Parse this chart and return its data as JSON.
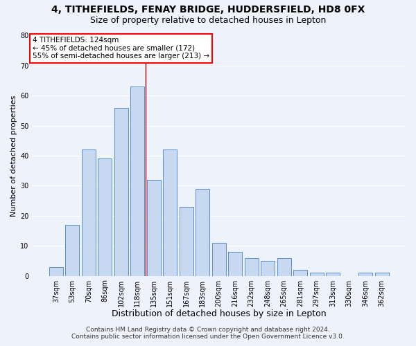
{
  "title1": "4, TITHEFIELDS, FENAY BRIDGE, HUDDERSFIELD, HD8 0FX",
  "title2": "Size of property relative to detached houses in Lepton",
  "xlabel": "Distribution of detached houses by size in Lepton",
  "ylabel": "Number of detached properties",
  "categories": [
    "37sqm",
    "53sqm",
    "70sqm",
    "86sqm",
    "102sqm",
    "118sqm",
    "135sqm",
    "151sqm",
    "167sqm",
    "183sqm",
    "200sqm",
    "216sqm",
    "232sqm",
    "248sqm",
    "265sqm",
    "281sqm",
    "297sqm",
    "313sqm",
    "330sqm",
    "346sqm",
    "362sqm"
  ],
  "values": [
    3,
    17,
    42,
    39,
    56,
    63,
    32,
    42,
    23,
    29,
    11,
    8,
    6,
    5,
    6,
    2,
    1,
    1,
    0,
    1,
    1
  ],
  "bar_color": "#c6d9f0",
  "bar_edge_color": "#5b8fcc",
  "vline_x": 5.5,
  "vline_color": "#aa0000",
  "annotation_line1": "4 TITHEFIELDS: 124sqm",
  "annotation_line2": "← 45% of detached houses are smaller (172)",
  "annotation_line3": "55% of semi-detached houses are larger (213) →",
  "annotation_box_color": "white",
  "annotation_box_edge_color": "red",
  "ylim": [
    0,
    80
  ],
  "yticks": [
    0,
    10,
    20,
    30,
    40,
    50,
    60,
    70,
    80
  ],
  "footer1": "Contains HM Land Registry data © Crown copyright and database right 2024.",
  "footer2": "Contains public sector information licensed under the Open Government Licence v3.0.",
  "background_color": "#eef2fb",
  "grid_color": "white",
  "title1_fontsize": 10,
  "title2_fontsize": 9,
  "xlabel_fontsize": 9,
  "ylabel_fontsize": 8,
  "tick_fontsize": 7,
  "annot_fontsize": 7.5,
  "footer_fontsize": 6.5
}
